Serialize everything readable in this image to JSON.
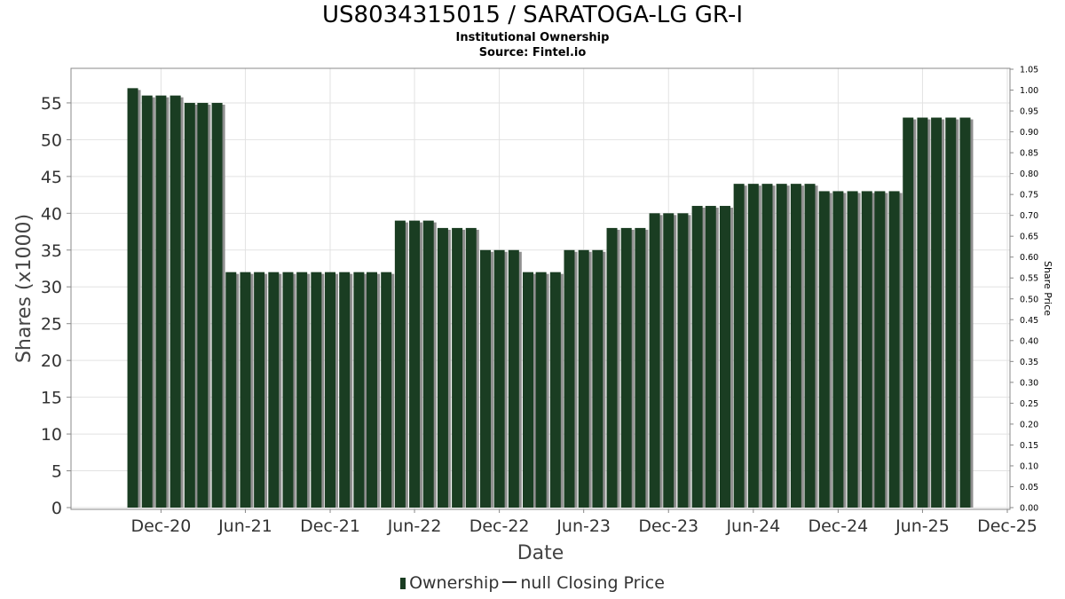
{
  "header": {
    "title": "US8034315015 / SARATOGA-LG GR-I",
    "subtitle": "Institutional Ownership",
    "source": "Source: Fintel.io"
  },
  "legend": {
    "ownership_label": "Ownership",
    "price_label": "null Closing Price"
  },
  "colors": {
    "bar": "#1a3d22",
    "bar_shadow": "#8f8f8f",
    "grid": "#e2e2e2"
  },
  "chart_data": {
    "type": "bar",
    "title": "US8034315015 / SARATOGA-LG GR-I",
    "subtitle": "Institutional Ownership",
    "xlabel": "Date",
    "ylabel": "Shares (x1000)",
    "y2label": "Share Price",
    "ylim": [
      0,
      58
    ],
    "yticks": [
      0,
      5,
      10,
      15,
      20,
      25,
      30,
      35,
      40,
      45,
      50,
      55
    ],
    "y2lim": [
      0,
      1.05
    ],
    "y2ticks": [
      "0.00",
      "0.05",
      "0.10",
      "0.15",
      "0.20",
      "0.25",
      "0.30",
      "0.35",
      "0.40",
      "0.45",
      "0.50",
      "0.55",
      "0.60",
      "0.65",
      "0.70",
      "0.75",
      "0.80",
      "0.85",
      "0.90",
      "0.95",
      "1.00",
      "1.05"
    ],
    "x_start": "2020-08-15",
    "x_end": "2025-12-01",
    "xticks": [
      {
        "label": "Dec-20",
        "date": "2020-12-01"
      },
      {
        "label": "Jun-21",
        "date": "2021-06-01"
      },
      {
        "label": "Dec-21",
        "date": "2021-12-01"
      },
      {
        "label": "Jun-22",
        "date": "2022-06-01"
      },
      {
        "label": "Dec-22",
        "date": "2022-12-01"
      },
      {
        "label": "Jun-23",
        "date": "2023-06-01"
      },
      {
        "label": "Dec-23",
        "date": "2023-12-01"
      },
      {
        "label": "Jun-24",
        "date": "2024-06-01"
      },
      {
        "label": "Dec-24",
        "date": "2024-12-01"
      },
      {
        "label": "Jun-25",
        "date": "2025-06-01"
      },
      {
        "label": "Dec-25",
        "date": "2025-12-01"
      }
    ],
    "grid": true,
    "legend_position": "bottom",
    "series": [
      {
        "name": "Ownership",
        "points": [
          {
            "date": "2020-10-01",
            "value": 57
          },
          {
            "date": "2020-11-01",
            "value": 56
          },
          {
            "date": "2020-12-01",
            "value": 56
          },
          {
            "date": "2021-01-01",
            "value": 56
          },
          {
            "date": "2021-02-01",
            "value": 55
          },
          {
            "date": "2021-03-01",
            "value": 55
          },
          {
            "date": "2021-04-01",
            "value": 55
          },
          {
            "date": "2021-05-01",
            "value": 32
          },
          {
            "date": "2021-06-01",
            "value": 32
          },
          {
            "date": "2021-07-01",
            "value": 32
          },
          {
            "date": "2021-08-01",
            "value": 32
          },
          {
            "date": "2021-09-01",
            "value": 32
          },
          {
            "date": "2021-10-01",
            "value": 32
          },
          {
            "date": "2021-11-01",
            "value": 32
          },
          {
            "date": "2021-12-01",
            "value": 32
          },
          {
            "date": "2022-01-01",
            "value": 32
          },
          {
            "date": "2022-02-01",
            "value": 32
          },
          {
            "date": "2022-03-01",
            "value": 32
          },
          {
            "date": "2022-04-01",
            "value": 32
          },
          {
            "date": "2022-05-01",
            "value": 39
          },
          {
            "date": "2022-06-01",
            "value": 39
          },
          {
            "date": "2022-07-01",
            "value": 39
          },
          {
            "date": "2022-08-01",
            "value": 38
          },
          {
            "date": "2022-09-01",
            "value": 38
          },
          {
            "date": "2022-10-01",
            "value": 38
          },
          {
            "date": "2022-11-01",
            "value": 35
          },
          {
            "date": "2022-12-01",
            "value": 35
          },
          {
            "date": "2023-01-01",
            "value": 35
          },
          {
            "date": "2023-02-01",
            "value": 32
          },
          {
            "date": "2023-03-01",
            "value": 32
          },
          {
            "date": "2023-04-01",
            "value": 32
          },
          {
            "date": "2023-05-01",
            "value": 35
          },
          {
            "date": "2023-06-01",
            "value": 35
          },
          {
            "date": "2023-07-01",
            "value": 35
          },
          {
            "date": "2023-08-01",
            "value": 38
          },
          {
            "date": "2023-09-01",
            "value": 38
          },
          {
            "date": "2023-10-01",
            "value": 38
          },
          {
            "date": "2023-11-01",
            "value": 40
          },
          {
            "date": "2023-12-01",
            "value": 40
          },
          {
            "date": "2024-01-01",
            "value": 40
          },
          {
            "date": "2024-02-01",
            "value": 41
          },
          {
            "date": "2024-03-01",
            "value": 41
          },
          {
            "date": "2024-04-01",
            "value": 41
          },
          {
            "date": "2024-05-01",
            "value": 44
          },
          {
            "date": "2024-06-01",
            "value": 44
          },
          {
            "date": "2024-07-01",
            "value": 44
          },
          {
            "date": "2024-08-01",
            "value": 44
          },
          {
            "date": "2024-09-01",
            "value": 44
          },
          {
            "date": "2024-10-01",
            "value": 44
          },
          {
            "date": "2024-11-01",
            "value": 43
          },
          {
            "date": "2024-12-01",
            "value": 43
          },
          {
            "date": "2025-01-01",
            "value": 43
          },
          {
            "date": "2025-02-01",
            "value": 43
          },
          {
            "date": "2025-03-01",
            "value": 43
          },
          {
            "date": "2025-04-01",
            "value": 43
          },
          {
            "date": "2025-05-01",
            "value": 53
          },
          {
            "date": "2025-06-01",
            "value": 53
          },
          {
            "date": "2025-07-01",
            "value": 53
          },
          {
            "date": "2025-08-01",
            "value": 53
          },
          {
            "date": "2025-09-01",
            "value": 53
          }
        ]
      }
    ]
  }
}
